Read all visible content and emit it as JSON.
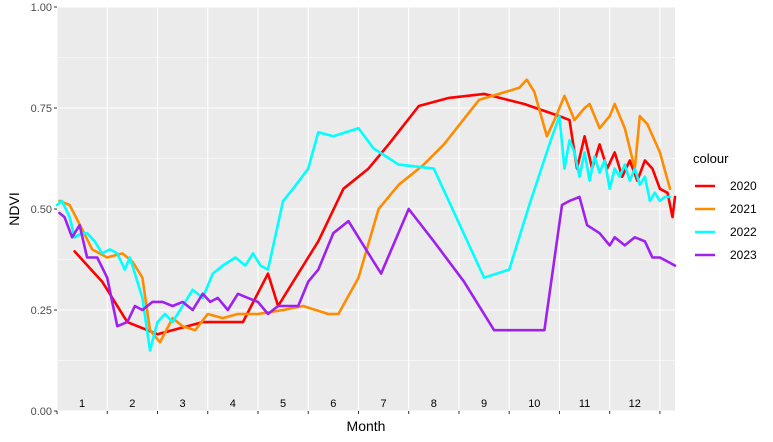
{
  "chart_data": {
    "type": "line",
    "xlabel": "Month",
    "ylabel": "NDVI",
    "xlim": [
      0,
      12.3
    ],
    "ylim": [
      0,
      1
    ],
    "y_ticks": [
      "0.00",
      "0.25",
      "0.50",
      "0.75",
      "1.00"
    ],
    "x_month_labels": [
      "1",
      "2",
      "3",
      "4",
      "5",
      "6",
      "7",
      "8",
      "9",
      "10",
      "11",
      "12"
    ],
    "grid": true,
    "legend_title": "colour",
    "legend_position": "right",
    "series": [
      {
        "name": "2020",
        "color": "#ff0000",
        "x": [
          0.35,
          0.9,
          1.4,
          2.0,
          2.9,
          3.7,
          4.2,
          4.4,
          4.8,
          5.2,
          5.7,
          6.2,
          6.6,
          7.2,
          7.8,
          8.5,
          9.3,
          10.0,
          10.2,
          10.35,
          10.5,
          10.65,
          10.8,
          10.95,
          11.1,
          11.25,
          11.4,
          11.55,
          11.7,
          11.85,
          12.0,
          12.15,
          12.25,
          12.3
        ],
        "y": [
          0.395,
          0.32,
          0.22,
          0.19,
          0.22,
          0.22,
          0.34,
          0.26,
          0.34,
          0.42,
          0.55,
          0.6,
          0.66,
          0.755,
          0.775,
          0.785,
          0.76,
          0.73,
          0.72,
          0.6,
          0.68,
          0.6,
          0.66,
          0.6,
          0.64,
          0.58,
          0.62,
          0.57,
          0.62,
          0.6,
          0.55,
          0.54,
          0.48,
          0.53
        ]
      },
      {
        "name": "2021",
        "color": "#ff8c00",
        "x": [
          0.05,
          0.25,
          0.5,
          0.7,
          1.0,
          1.3,
          1.5,
          1.7,
          1.85,
          2.05,
          2.3,
          2.5,
          2.75,
          3.0,
          3.3,
          3.6,
          4.0,
          4.5,
          4.9,
          5.4,
          5.6,
          6.0,
          6.4,
          6.8,
          7.3,
          7.7,
          8.4,
          9.2,
          9.35,
          9.5,
          9.75,
          9.9,
          10.1,
          10.3,
          10.5,
          10.6,
          10.8,
          11.0,
          11.1,
          11.3,
          11.5,
          11.6,
          11.75,
          12.0,
          12.2
        ],
        "y": [
          0.52,
          0.51,
          0.45,
          0.4,
          0.38,
          0.39,
          0.37,
          0.33,
          0.2,
          0.17,
          0.23,
          0.21,
          0.2,
          0.24,
          0.23,
          0.24,
          0.24,
          0.25,
          0.26,
          0.24,
          0.24,
          0.33,
          0.5,
          0.56,
          0.61,
          0.66,
          0.77,
          0.8,
          0.82,
          0.79,
          0.68,
          0.72,
          0.78,
          0.72,
          0.75,
          0.76,
          0.7,
          0.73,
          0.76,
          0.7,
          0.6,
          0.73,
          0.71,
          0.64,
          0.55
        ]
      },
      {
        "name": "2022",
        "color": "#00ffff",
        "x": [
          0.0,
          0.1,
          0.25,
          0.35,
          0.5,
          0.6,
          0.75,
          0.9,
          1.05,
          1.2,
          1.35,
          1.45,
          1.55,
          1.7,
          1.85,
          2.0,
          2.15,
          2.3,
          2.5,
          2.7,
          2.9,
          3.1,
          3.3,
          3.55,
          3.75,
          3.9,
          4.05,
          4.2,
          4.5,
          4.7,
          5.0,
          5.2,
          5.5,
          6.0,
          6.3,
          6.8,
          7.5,
          8.5,
          9.0,
          9.4,
          9.8,
          10.0,
          10.1,
          10.2,
          10.3,
          10.4,
          10.5,
          10.6,
          10.7,
          10.8,
          10.9,
          11.0,
          11.1,
          11.2,
          11.3,
          11.4,
          11.5,
          11.6,
          11.7,
          11.8,
          11.9,
          12.0,
          12.1,
          12.2
        ],
        "y": [
          0.51,
          0.52,
          0.48,
          0.43,
          0.44,
          0.44,
          0.42,
          0.39,
          0.4,
          0.39,
          0.35,
          0.38,
          0.34,
          0.28,
          0.15,
          0.22,
          0.24,
          0.22,
          0.26,
          0.3,
          0.28,
          0.34,
          0.36,
          0.38,
          0.36,
          0.39,
          0.36,
          0.35,
          0.52,
          0.55,
          0.6,
          0.69,
          0.68,
          0.7,
          0.65,
          0.61,
          0.6,
          0.33,
          0.35,
          0.51,
          0.66,
          0.73,
          0.6,
          0.67,
          0.64,
          0.58,
          0.64,
          0.57,
          0.63,
          0.59,
          0.62,
          0.55,
          0.6,
          0.58,
          0.61,
          0.57,
          0.6,
          0.56,
          0.58,
          0.52,
          0.54,
          0.52,
          0.53,
          0.53
        ]
      },
      {
        "name": "2023",
        "color": "#a020f0",
        "x": [
          0.05,
          0.15,
          0.3,
          0.45,
          0.6,
          0.8,
          1.0,
          1.2,
          1.4,
          1.55,
          1.7,
          1.9,
          2.1,
          2.3,
          2.5,
          2.7,
          2.9,
          3.05,
          3.2,
          3.4,
          3.6,
          3.8,
          4.0,
          4.2,
          4.4,
          4.6,
          4.8,
          5.0,
          5.2,
          5.5,
          5.8,
          6.1,
          6.25,
          6.45,
          7.0,
          7.5,
          8.1,
          8.7,
          9.0,
          9.4,
          9.7,
          10.05,
          10.2,
          10.4,
          10.55,
          10.8,
          11.0,
          11.1,
          11.3,
          11.5,
          11.7,
          11.85,
          12.0,
          12.15,
          12.3
        ],
        "y": [
          0.49,
          0.48,
          0.43,
          0.46,
          0.38,
          0.38,
          0.33,
          0.21,
          0.22,
          0.26,
          0.25,
          0.27,
          0.27,
          0.26,
          0.27,
          0.25,
          0.29,
          0.27,
          0.28,
          0.25,
          0.29,
          0.28,
          0.27,
          0.24,
          0.26,
          0.26,
          0.26,
          0.32,
          0.35,
          0.44,
          0.47,
          0.41,
          0.38,
          0.34,
          0.5,
          0.42,
          0.32,
          0.2,
          0.2,
          0.2,
          0.2,
          0.51,
          0.52,
          0.53,
          0.46,
          0.44,
          0.41,
          0.43,
          0.41,
          0.43,
          0.42,
          0.38,
          0.38,
          0.37,
          0.36
        ]
      }
    ]
  }
}
